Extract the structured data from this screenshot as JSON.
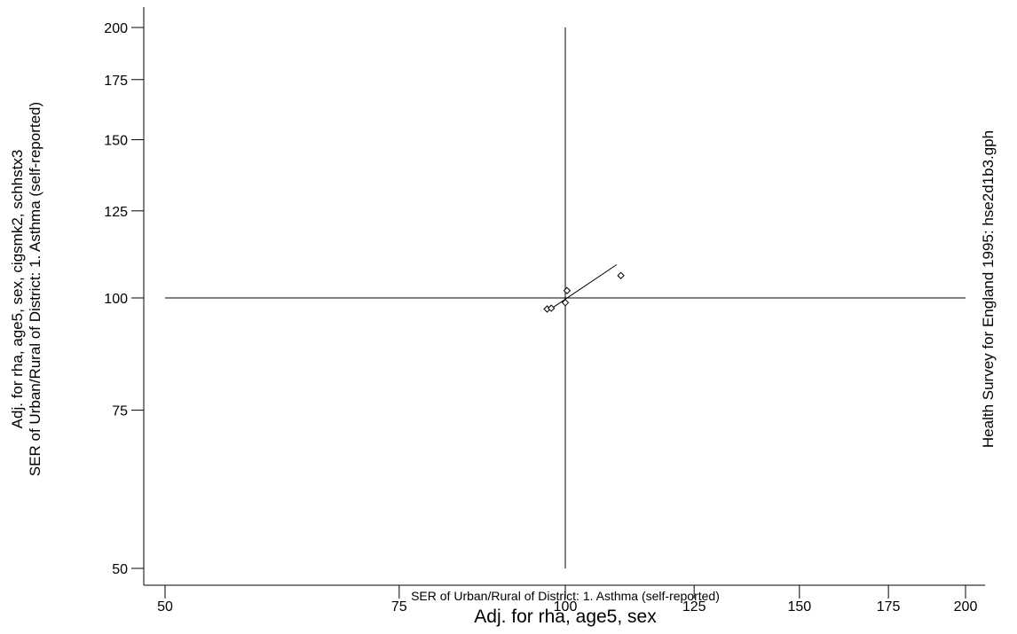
{
  "chart_data": {
    "type": "scatter",
    "title": "",
    "xlabel": "SER of Urban/Rural of District: 1.  Asthma (self-reported)",
    "xlabel2": "Adj. for rha, age5, sex",
    "ylabel": "SER of Urban/Rural of District: 1.  Asthma (self-reported)",
    "ylabel2": "Adj. for rha, age5, sex, cigsmk2, schhstx3",
    "side_note": "Health Survey for England 1995: hse2d1b3.gph",
    "x_scale": "log",
    "y_scale": "log",
    "xlim": [
      50,
      200
    ],
    "ylim": [
      50,
      200
    ],
    "x_ticks": [
      50,
      75,
      100,
      125,
      150,
      175,
      200
    ],
    "y_ticks": [
      50,
      75,
      100,
      125,
      150,
      175,
      200
    ],
    "x_tick_labels": [
      "50",
      "75",
      "100",
      "125",
      "150",
      "175",
      "200"
    ],
    "y_tick_labels": [
      "50",
      "75",
      "100",
      "125",
      "150",
      "175",
      "200"
    ],
    "reference_lines": {
      "x": 100,
      "y": 100
    },
    "points": [
      {
        "x": 96.9,
        "y": 97.2
      },
      {
        "x": 97.6,
        "y": 97.4
      },
      {
        "x": 100.0,
        "y": 98.8
      },
      {
        "x": 100.3,
        "y": 101.9
      },
      {
        "x": 110.1,
        "y": 105.9
      }
    ],
    "fit_line": [
      {
        "x": 96.9,
        "y": 96.6
      },
      {
        "x": 109.3,
        "y": 108.9
      }
    ],
    "grid": false,
    "legend": "none"
  }
}
